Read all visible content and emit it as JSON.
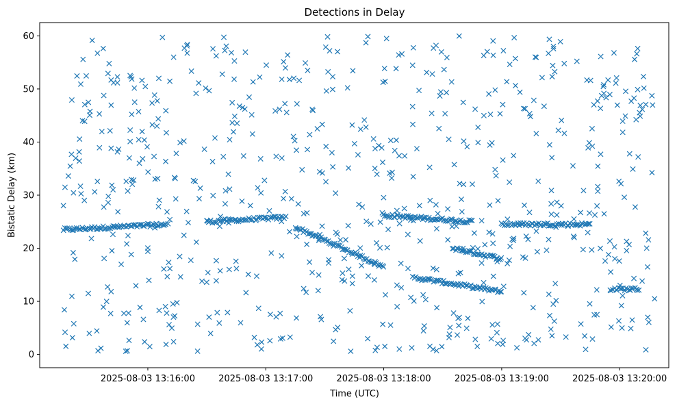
{
  "chart_data": {
    "type": "scatter",
    "title": "Detections in Delay",
    "xlabel": "Time (UTC)",
    "ylabel": "Bistatic Delay (km)",
    "marker": "x",
    "color": "#1f77b4",
    "xlim": [
      "2025-08-03 13:15:05",
      "2025-08-03 13:20:25"
    ],
    "ylim": [
      -2.5,
      62.5
    ],
    "x_ticks": [
      "2025-08-03 13:16:00",
      "2025-08-03 13:17:00",
      "2025-08-03 13:18:00",
      "2025-08-03 13:19:00",
      "2025-08-03 13:20:00"
    ],
    "y_ticks": [
      0,
      10,
      20,
      30,
      40,
      50,
      60
    ],
    "grid": false,
    "tracks": [
      {
        "x_start": "2025-08-03 13:15:17",
        "y_start": 23.5,
        "x_end": "2025-08-03 13:16:10",
        "y_end": 24.5
      },
      {
        "x_start": "2025-08-03 13:16:30",
        "y_start": 25.0,
        "x_end": "2025-08-03 13:17:10",
        "y_end": 25.8
      },
      {
        "x_start": "2025-08-03 13:17:15",
        "y_start": 24.0,
        "x_end": "2025-08-03 13:18:00",
        "y_end": 16.5
      },
      {
        "x_start": "2025-08-03 13:18:00",
        "y_start": 26.2,
        "x_end": "2025-08-03 13:18:45",
        "y_end": 25.0
      },
      {
        "x_start": "2025-08-03 13:18:15",
        "y_start": 14.5,
        "x_end": "2025-08-03 13:19:00",
        "y_end": 11.8
      },
      {
        "x_start": "2025-08-03 13:18:35",
        "y_start": 20.0,
        "x_end": "2025-08-03 13:19:00",
        "y_end": 18.0
      },
      {
        "x_start": "2025-08-03 13:19:00",
        "y_start": 24.5,
        "x_end": "2025-08-03 13:19:45",
        "y_end": 24.5
      },
      {
        "x_start": "2025-08-03 13:19:55",
        "y_start": 12.3,
        "x_end": "2025-08-03 13:20:10",
        "y_end": 12.3
      }
    ],
    "n_clutter_points": 700
  }
}
